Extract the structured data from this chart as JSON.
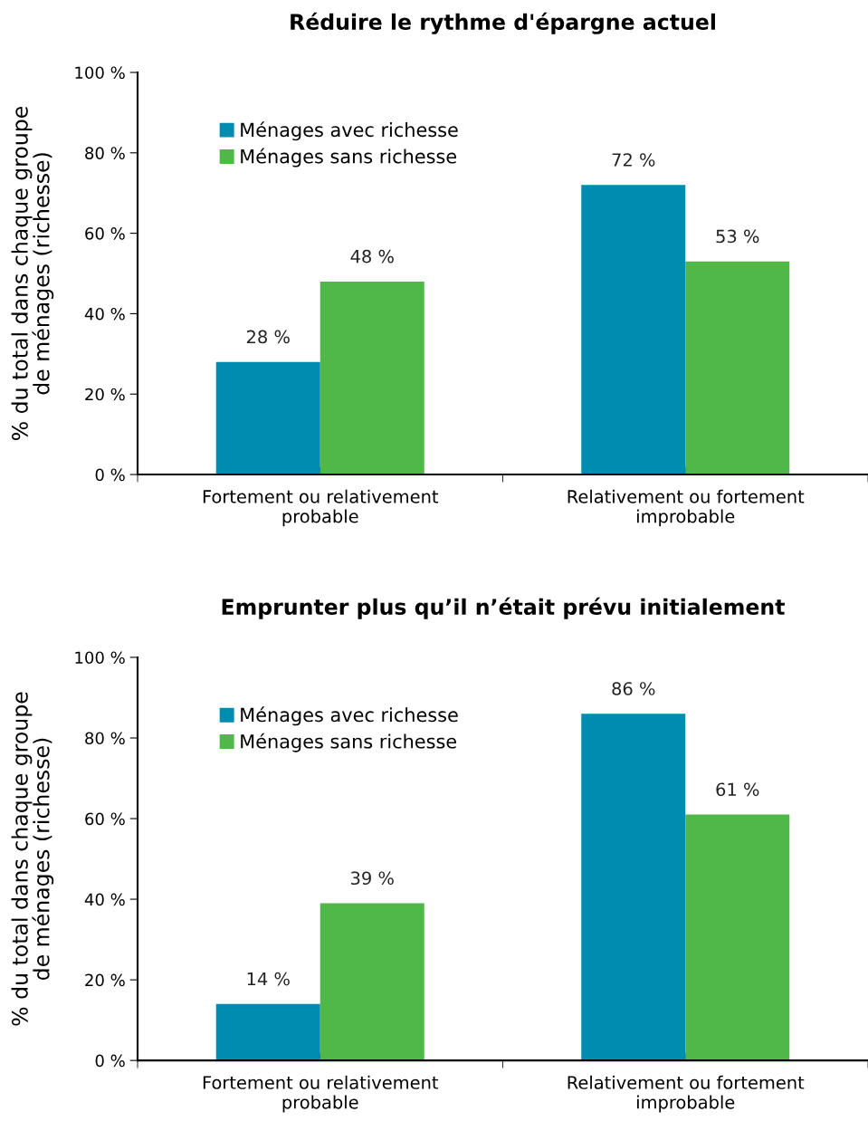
{
  "chart_data": [
    {
      "type": "bar",
      "title": "Réduire le rythme d'épargne actuel",
      "ylabel": "% du total dans chaque groupe\nde ménages (richesse)",
      "categories": [
        "Fortement ou relativement\nprobable",
        "Relativement ou fortement\nimprobable"
      ],
      "series": [
        {
          "name": "Ménages avec richesse",
          "color": "#008cb0",
          "values": [
            28,
            72
          ],
          "value_labels": [
            "28 %",
            "72 %"
          ]
        },
        {
          "name": "Ménages sans richesse",
          "color": "#50b848",
          "values": [
            48,
            53
          ],
          "value_labels": [
            "48 %",
            "53 %"
          ]
        }
      ],
      "ylim": [
        0,
        100
      ],
      "yticks": [
        {
          "value": 0,
          "label": "0 %"
        },
        {
          "value": 20,
          "label": "20 %"
        },
        {
          "value": 40,
          "label": "40 %"
        },
        {
          "value": 60,
          "label": "60 %"
        },
        {
          "value": 80,
          "label": "80 %"
        },
        {
          "value": 100,
          "label": "100 %"
        }
      ],
      "legend": "top left",
      "grid": false
    },
    {
      "type": "bar",
      "title": "Emprunter plus qu’il n’était prévu initialement",
      "ylabel": "% du total dans chaque groupe\nde ménages (richesse)",
      "categories": [
        "Fortement ou relativement\nprobable",
        "Relativement ou fortement\nimprobable"
      ],
      "series": [
        {
          "name": "Ménages avec richesse",
          "color": "#008cb0",
          "values": [
            14,
            86
          ],
          "value_labels": [
            "14 %",
            "86 %"
          ]
        },
        {
          "name": "Ménages sans richesse",
          "color": "#50b848",
          "values": [
            39,
            61
          ],
          "value_labels": [
            "39 %",
            "61 %"
          ]
        }
      ],
      "ylim": [
        0,
        100
      ],
      "yticks": [
        {
          "value": 0,
          "label": "0 %"
        },
        {
          "value": 20,
          "label": "20 %"
        },
        {
          "value": 40,
          "label": "40 %"
        },
        {
          "value": 60,
          "label": "60 %"
        },
        {
          "value": 80,
          "label": "80 %"
        },
        {
          "value": 100,
          "label": "100 %"
        }
      ],
      "legend": "top left",
      "grid": false
    }
  ]
}
